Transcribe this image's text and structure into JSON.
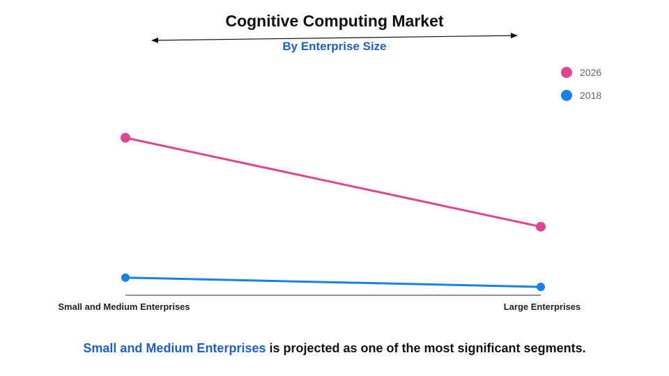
{
  "colors": {
    "accent_blue": "#1f5fc2",
    "series_2026": "#e0468f",
    "series_2018": "#1a7fe8",
    "axis": "#555555"
  },
  "chart_data": {
    "type": "line",
    "title": "Cognitive Computing Market",
    "subtitle": "By Enterprise Size",
    "categories": [
      "Small and Medium Enterprises",
      "Large Enterprises"
    ],
    "series": [
      {
        "name": "2026",
        "values": [
          8.5,
          3.7
        ],
        "color": "#e0468f"
      },
      {
        "name": "2018",
        "values": [
          0.95,
          0.45
        ],
        "color": "#1a7fe8"
      }
    ],
    "ylim": [
      0,
      10
    ],
    "grid": false,
    "legend_position": "top-right",
    "title_decoration": "double-headed-arrow"
  },
  "footer": {
    "highlight": "Small and Medium Enterprises",
    "rest": " is projected as one of the most significant segments."
  }
}
